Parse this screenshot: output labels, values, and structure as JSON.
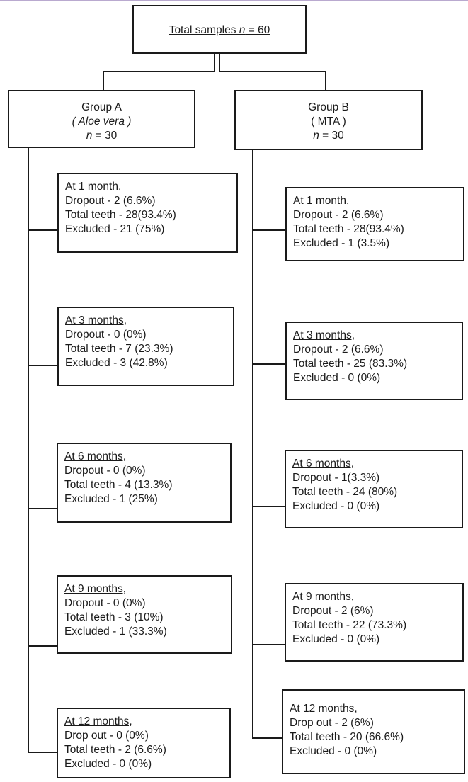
{
  "total": {
    "label": "Total samples",
    "n_symbol": "n",
    "eq": " = 60"
  },
  "group_a": {
    "title": "Group A",
    "subtitle": "( Aloe vera )",
    "n_symbol": "n",
    "n_eq": " = 30"
  },
  "group_b": {
    "title": "Group B",
    "subtitle": "( MTA )",
    "n_symbol": "n",
    "n_eq": " = 30"
  },
  "a_boxes": [
    {
      "header": "At 1 month,",
      "dropout": "Dropout - 2 (6.6%)",
      "total": "Total teeth - 28(93.4%)",
      "excluded": "Excluded - 21 (75%)"
    },
    {
      "header": "At 3 months,",
      "dropout": "Dropout - 0 (0%)",
      "total": "Total teeth - 7 (23.3%)",
      "excluded": "Excluded - 3 (42.8%)"
    },
    {
      "header": "At 6 months,",
      "dropout": "Dropout - 0 (0%)",
      "total": "Total teeth - 4 (13.3%)",
      "excluded": "Excluded - 1 (25%)"
    },
    {
      "header": "At 9 months,",
      "dropout": "Dropout - 0 (0%)",
      "total": "Total teeth - 3 (10%)",
      "excluded": "Excluded - 1 (33.3%)"
    },
    {
      "header": "At 12 months,",
      "dropout": "Drop out - 0 (0%)",
      "total": "Total teeth - 2 (6.6%)",
      "excluded": "Excluded - 0 (0%)"
    }
  ],
  "b_boxes": [
    {
      "header": "At 1 month,",
      "dropout": "Dropout - 2 (6.6%)",
      "total": "Total teeth - 28(93.4%)",
      "excluded": "Excluded - 1 (3.5%)"
    },
    {
      "header": "At 3 months,",
      "dropout": "Dropout - 2 (6.6%)",
      "total": "Total teeth - 25 (83.3%)",
      "excluded": "Excluded - 0 (0%)"
    },
    {
      "header": "At 6 months,",
      "dropout": "Dropout - 1(3.3%)",
      "total": "Total teeth - 24 (80%)",
      "excluded": "Excluded - 0 (0%)"
    },
    {
      "header": "At 9 months,",
      "dropout": "Dropout - 2 (6%)",
      "total": "Total teeth - 22 (73.3%)",
      "excluded": "Excluded - 0 (0%)"
    },
    {
      "header": "At 12 months,",
      "dropout": "Drop out - 2 (6%)",
      "total": "Total teeth - 20 (66.6%)",
      "excluded": "Excluded - 0 (0%)"
    }
  ]
}
